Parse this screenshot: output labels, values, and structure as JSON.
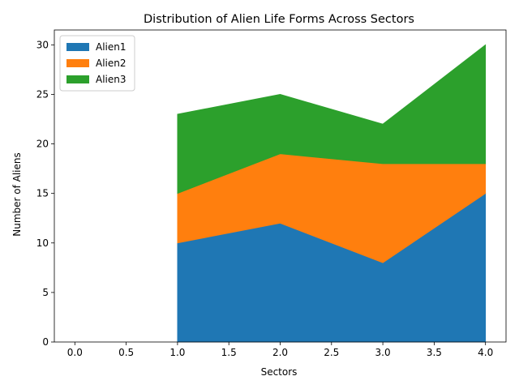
{
  "chart_data": {
    "type": "area",
    "title": "Distribution of Alien Life Forms Across Sectors",
    "xlabel": "Sectors",
    "ylabel": "Number of Aliens",
    "x": [
      1,
      2,
      3,
      4
    ],
    "xlim": [
      -0.2,
      4.2
    ],
    "ylim": [
      0,
      31.5
    ],
    "xticks": [
      "0.0",
      "0.5",
      "1.0",
      "1.5",
      "2.0",
      "2.5",
      "3.0",
      "3.5",
      "4.0"
    ],
    "yticks": [
      "0",
      "5",
      "10",
      "15",
      "20",
      "25",
      "30"
    ],
    "stacked": true,
    "grid": false,
    "legend_position": "upper-left",
    "series": [
      {
        "name": "Alien1",
        "values": [
          10,
          12,
          8,
          15
        ],
        "color": "#1f77b4"
      },
      {
        "name": "Alien2",
        "values": [
          5,
          7,
          10,
          3
        ],
        "color": "#ff7f0e"
      },
      {
        "name": "Alien3",
        "values": [
          8,
          6,
          4,
          12
        ],
        "color": "#2ca02c"
      }
    ]
  }
}
